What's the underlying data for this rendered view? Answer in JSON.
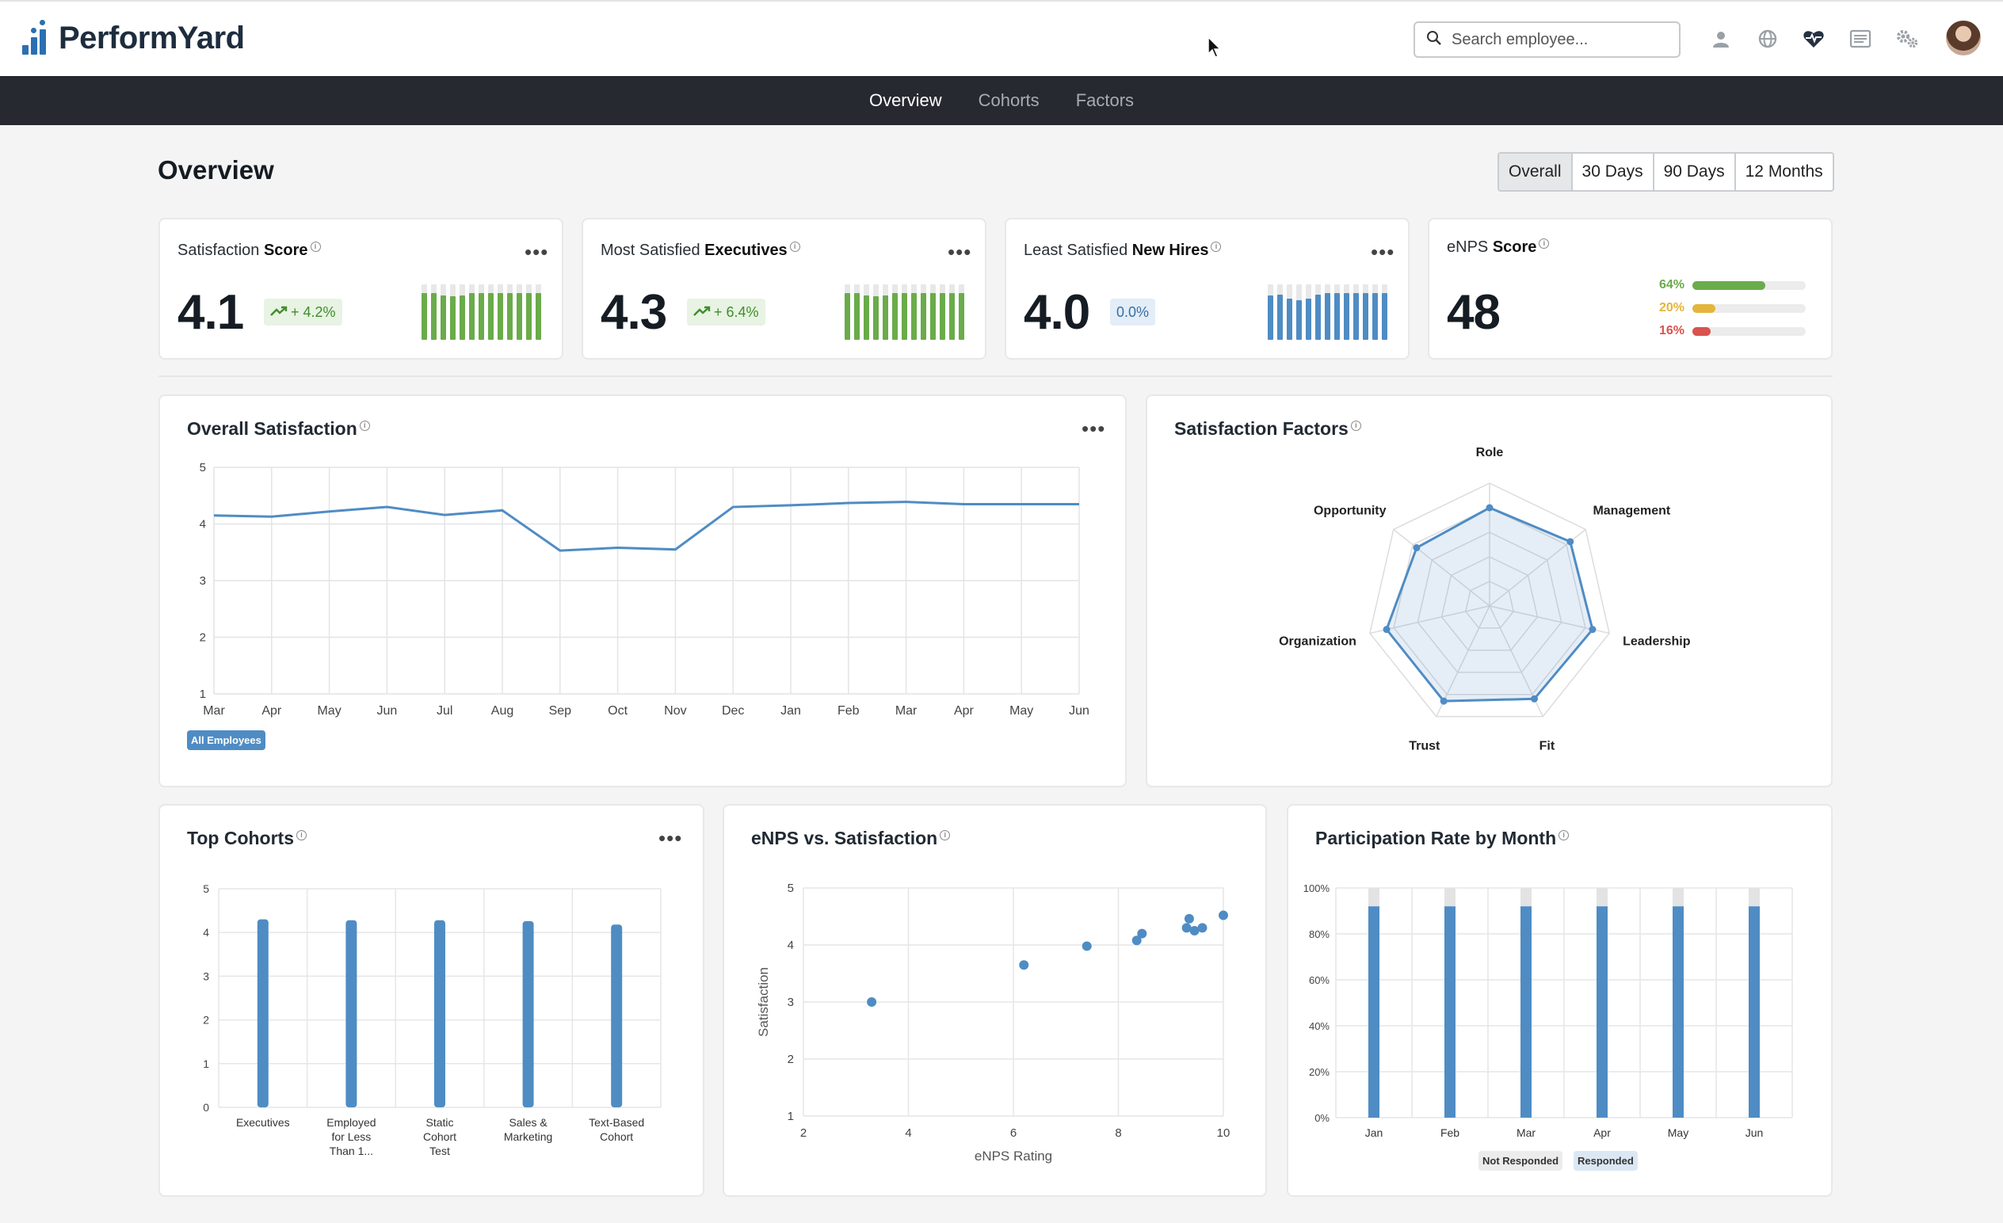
{
  "brand": {
    "name": "PerformYard"
  },
  "search": {
    "placeholder": "Search employee..."
  },
  "header_icons": [
    "person-icon",
    "globe-icon",
    "heart-pulse-icon",
    "list-icon",
    "gears-icon"
  ],
  "nav": {
    "tabs": [
      {
        "label": "Overview",
        "active": true
      },
      {
        "label": "Cohorts",
        "active": false
      },
      {
        "label": "Factors",
        "active": false
      }
    ]
  },
  "page": {
    "title": "Overview"
  },
  "ranges": {
    "options": [
      "Overall",
      "30 Days",
      "90 Days",
      "12 Months"
    ],
    "selected": "Overall"
  },
  "colors": {
    "accent": "#4f8cc4",
    "green": "#6aab4a",
    "yellow": "#e3b53a",
    "red": "#d9534f",
    "nav": "#262a30"
  },
  "kpis": [
    {
      "title_pre": "Satisfaction ",
      "title_bold": "Score",
      "value": "4.1",
      "change": "+ 4.2%",
      "trend": "up",
      "bar_color": "#6aab4a",
      "bars": [
        0.85,
        0.85,
        0.8,
        0.78,
        0.8,
        0.85,
        0.85,
        0.85,
        0.85,
        0.85,
        0.85,
        0.85,
        0.85
      ]
    },
    {
      "title_pre": "Most Satisfied ",
      "title_bold": "Executives",
      "value": "4.3",
      "change": "+ 6.4%",
      "trend": "up",
      "bar_color": "#6aab4a",
      "bars": [
        0.85,
        0.85,
        0.8,
        0.78,
        0.8,
        0.85,
        0.85,
        0.85,
        0.85,
        0.85,
        0.85,
        0.85,
        0.85
      ]
    },
    {
      "title_pre": "Least Satisfied ",
      "title_bold": "New Hires",
      "value": "4.0",
      "change": "0.0%",
      "trend": "flat",
      "bar_color": "#4f8cc4",
      "bars": [
        0.8,
        0.82,
        0.75,
        0.72,
        0.75,
        0.82,
        0.84,
        0.84,
        0.84,
        0.84,
        0.84,
        0.84,
        0.84
      ]
    }
  ],
  "enps": {
    "title_pre": "eNPS ",
    "title_bold": "Score",
    "value": "48",
    "rows": [
      {
        "label": "64%",
        "fraction": 0.64,
        "color": "#6aab4a"
      },
      {
        "label": "20%",
        "fraction": 0.2,
        "color": "#e3b53a"
      },
      {
        "label": "16%",
        "fraction": 0.16,
        "color": "#d9534f"
      }
    ]
  },
  "overall": {
    "title": "Overall Satisfaction",
    "legend": "All Employees"
  },
  "factors": {
    "title": "Satisfaction Factors"
  },
  "cohorts": {
    "title": "Top Cohorts"
  },
  "scatter": {
    "title": "eNPS vs. Satisfaction"
  },
  "participation": {
    "title": "Participation Rate by Month",
    "legend": [
      "Not Responded",
      "Responded"
    ]
  },
  "chart_data": [
    {
      "type": "line",
      "id": "overall",
      "categories": [
        "Mar",
        "Apr",
        "May",
        "Jun",
        "Jul",
        "Aug",
        "Sep",
        "Oct",
        "Nov",
        "Dec",
        "Jan",
        "Feb",
        "Mar",
        "Apr",
        "May",
        "Jun"
      ],
      "series": [
        {
          "name": "All Employees",
          "values": [
            4.15,
            4.13,
            4.22,
            4.3,
            4.16,
            4.24,
            3.53,
            3.58,
            3.55,
            4.3,
            4.33,
            4.37,
            4.39,
            4.35,
            4.35,
            4.35
          ]
        }
      ],
      "ylim": [
        1,
        5
      ],
      "yticks": [
        1,
        2,
        3,
        4,
        5
      ],
      "grid": true
    },
    {
      "type": "radar",
      "id": "factors",
      "categories": [
        "Role",
        "Management",
        "Leadership",
        "Fit",
        "Trust",
        "Organization",
        "Opportunity"
      ],
      "values": [
        4.0,
        4.2,
        4.3,
        4.2,
        4.3,
        4.3,
        3.8
      ],
      "range": [
        0,
        5
      ]
    },
    {
      "type": "bar",
      "id": "cohorts",
      "categories": [
        "Executives",
        "Employed for Less Than 1...",
        "Static Cohort Test",
        "Sales & Marketing",
        "Text-Based Cohort"
      ],
      "values": [
        4.3,
        4.28,
        4.28,
        4.26,
        4.18
      ],
      "ylim": [
        0,
        5
      ],
      "yticks": [
        0,
        1,
        2,
        3,
        4,
        5
      ]
    },
    {
      "type": "scatter",
      "id": "enps_vs_sat",
      "xlabel": "eNPS Rating",
      "ylabel": "Satisfaction",
      "xlim": [
        2,
        10
      ],
      "ylim": [
        1,
        5
      ],
      "xticks": [
        2,
        4,
        6,
        8,
        10
      ],
      "yticks": [
        1,
        2,
        3,
        4,
        5
      ],
      "points": [
        [
          3.3,
          3.0
        ],
        [
          6.2,
          3.65
        ],
        [
          7.4,
          3.98
        ],
        [
          8.35,
          4.08
        ],
        [
          8.45,
          4.2
        ],
        [
          9.3,
          4.3
        ],
        [
          9.35,
          4.46
        ],
        [
          9.45,
          4.25
        ],
        [
          9.6,
          4.3
        ],
        [
          10.0,
          4.52
        ]
      ]
    },
    {
      "type": "bar",
      "id": "participation",
      "stacked": true,
      "categories": [
        "Jan",
        "Feb",
        "Mar",
        "Apr",
        "May",
        "Jun"
      ],
      "series": [
        {
          "name": "Responded",
          "values": [
            92,
            92,
            92,
            92,
            92,
            92
          ]
        },
        {
          "name": "Not Responded",
          "values": [
            8,
            8,
            8,
            8,
            8,
            8
          ]
        }
      ],
      "ylim": [
        0,
        100
      ],
      "yticks": [
        "0%",
        "20%",
        "40%",
        "60%",
        "80%",
        "100%"
      ]
    }
  ]
}
